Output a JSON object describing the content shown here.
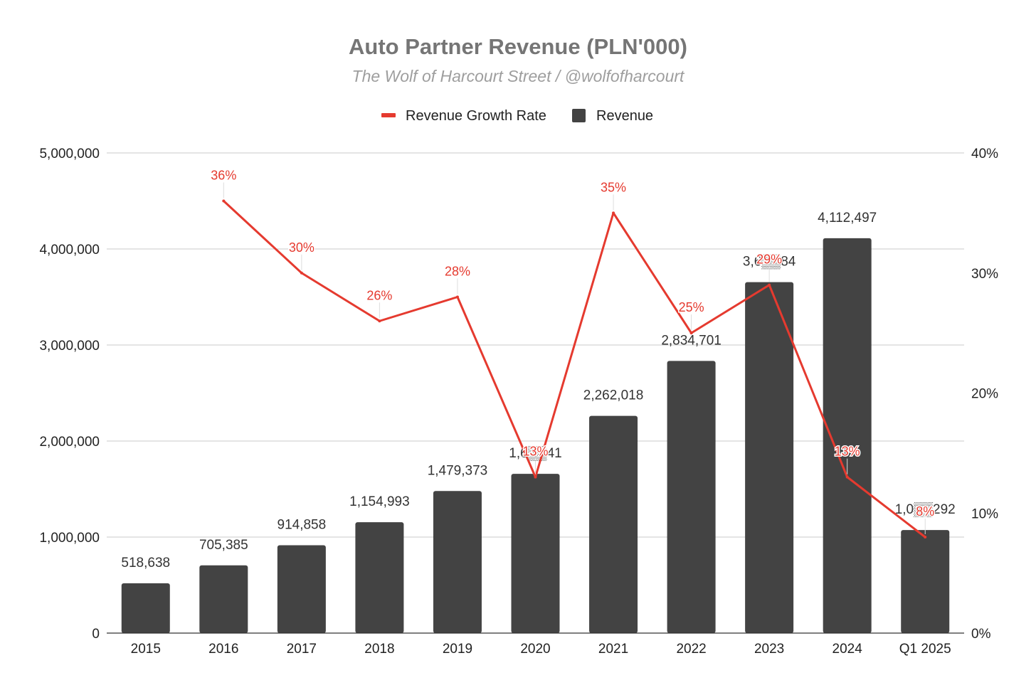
{
  "chart_data": {
    "type": "bar",
    "title": "Auto Partner Revenue (PLN'000)",
    "subtitle": "The Wolf of Harcourt Street / @wolfofharcourt",
    "categories": [
      "2015",
      "2016",
      "2017",
      "2018",
      "2019",
      "2020",
      "2021",
      "2022",
      "2023",
      "2024",
      "Q1 2025"
    ],
    "series": [
      {
        "name": "Revenue",
        "type": "bar",
        "axis": "left",
        "color": "#434343",
        "values": [
          518638,
          705385,
          914858,
          1154993,
          1479373,
          1657941,
          2262018,
          2834701,
          3654384,
          4112497,
          1073292
        ],
        "labels": [
          "518,638",
          "705,385",
          "914,858",
          "1,154,993",
          "1,479,373",
          "1,6▒▒41",
          "2,262,018",
          "2,834,701",
          "3,6▒▒84",
          "4,112,497",
          "1,0▒▒292"
        ]
      },
      {
        "name": "Revenue Growth Rate",
        "type": "line",
        "axis": "right",
        "color": "#e53a2f",
        "values": [
          null,
          36,
          30,
          26,
          28,
          13,
          35,
          25,
          29,
          13,
          8
        ],
        "labels": [
          "",
          "36%",
          "30%",
          "26%",
          "28%",
          "13%",
          "35%",
          "25%",
          "29%",
          "13%",
          "8%"
        ]
      }
    ],
    "legend": {
      "position": "top",
      "items": [
        {
          "name": "Revenue Growth Rate",
          "marker": "line",
          "color": "#e53a2f"
        },
        {
          "name": "Revenue",
          "marker": "square",
          "color": "#434343"
        }
      ]
    },
    "y_left": {
      "min": 0,
      "max": 5000000,
      "ticks": [
        0,
        1000000,
        2000000,
        3000000,
        4000000,
        5000000
      ],
      "tick_labels": [
        "0",
        "1,000,000",
        "2,000,000",
        "3,000,000",
        "4,000,000",
        "5,000,000"
      ]
    },
    "y_right": {
      "min": 0,
      "max": 40,
      "ticks": [
        0,
        10,
        20,
        30,
        40
      ],
      "tick_labels": [
        "0%",
        "10%",
        "20%",
        "30%",
        "40%"
      ]
    },
    "grid": true
  }
}
